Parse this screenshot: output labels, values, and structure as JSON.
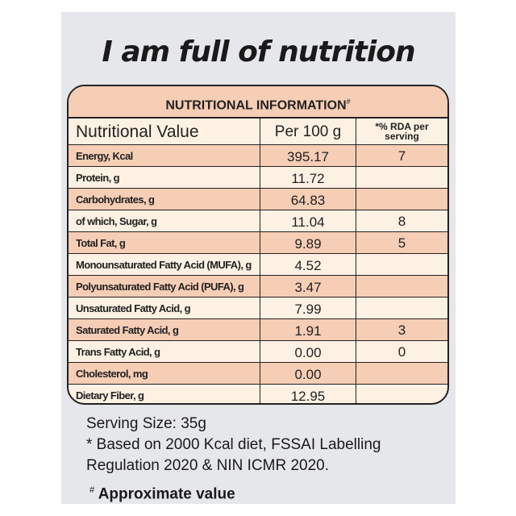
{
  "title": "I am full of nutrition",
  "table": {
    "heading": "NUTRITIONAL INFORMATION",
    "heading_mark": "#",
    "columns": [
      "Nutritional Value",
      "Per 100 g",
      "*% RDA per serving"
    ],
    "rows": [
      {
        "name": "Energy, Kcal",
        "per100": "395.17",
        "rda": "7"
      },
      {
        "name": "Protein, g",
        "per100": "11.72",
        "rda": ""
      },
      {
        "name": "Carbohydrates, g",
        "per100": "64.83",
        "rda": ""
      },
      {
        "name": "of which, Sugar, g",
        "per100": "11.04",
        "rda": "8"
      },
      {
        "name": "Total Fat, g",
        "per100": "9.89",
        "rda": "5"
      },
      {
        "name": "Monounsaturated Fatty Acid (MUFA), g",
        "per100": "4.52",
        "rda": ""
      },
      {
        "name": "Polyunsaturated Fatty Acid (PUFA), g",
        "per100": "3.47",
        "rda": ""
      },
      {
        "name": "Unsaturated Fatty Acid, g",
        "per100": "7.99",
        "rda": ""
      },
      {
        "name": "Saturated Fatty Acid, g",
        "per100": "1.91",
        "rda": "3"
      },
      {
        "name": "Trans Fatty Acid, g",
        "per100": "0.00",
        "rda": "0"
      },
      {
        "name": "Cholesterol, mg",
        "per100": "0.00",
        "rda": ""
      },
      {
        "name": "Dietary Fiber, g",
        "per100": "12.95",
        "rda": ""
      }
    ]
  },
  "notes": {
    "serving": "Serving Size: 35g",
    "line1": "* Based on 2000 Kcal diet, FSSAI Labelling",
    "line2": "Regulation 2020 & NIN ICMR 2020.",
    "approx_mark": "#",
    "approx": "Approximate value"
  },
  "colors": {
    "peach": "#f6cdb5",
    "cream": "#fdf1e3",
    "panel": "#e6e7eb"
  }
}
